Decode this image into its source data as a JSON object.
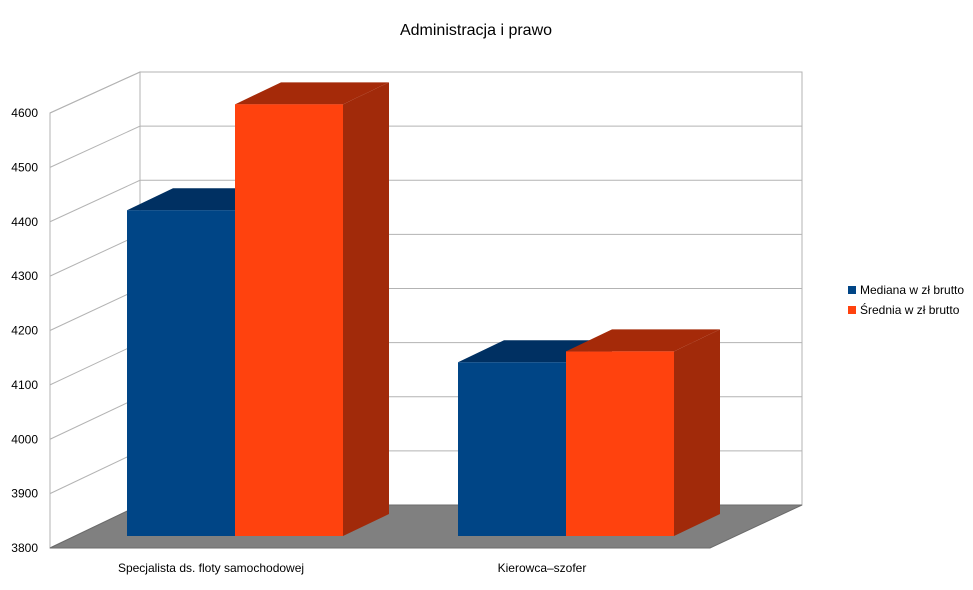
{
  "chart_data": {
    "type": "bar",
    "title": "Administracja i prawo",
    "xlabel": "",
    "ylabel": "",
    "categories": [
      "Specjalista ds. floty samochodowej",
      "Kierowca–szofer"
    ],
    "series": [
      {
        "name": "Mediana w zł brutto",
        "values": [
          4400,
          4120
        ],
        "color": "#004586",
        "top_color": "#003062",
        "side_color": "#002b57"
      },
      {
        "name": "Średnia w zł brutto",
        "values": [
          4595,
          4140
        ],
        "color": "#ff420e",
        "top_color": "#a52a09",
        "side_color": "#a12a0a"
      }
    ],
    "ylim": [
      3800,
      4600
    ],
    "yticks": [
      "3800",
      "3900",
      "4000",
      "4100",
      "4200",
      "4300",
      "4400",
      "4500",
      "4600"
    ],
    "grid": true,
    "three_d": true,
    "legend_position": "right",
    "floor_color": "#808080"
  }
}
